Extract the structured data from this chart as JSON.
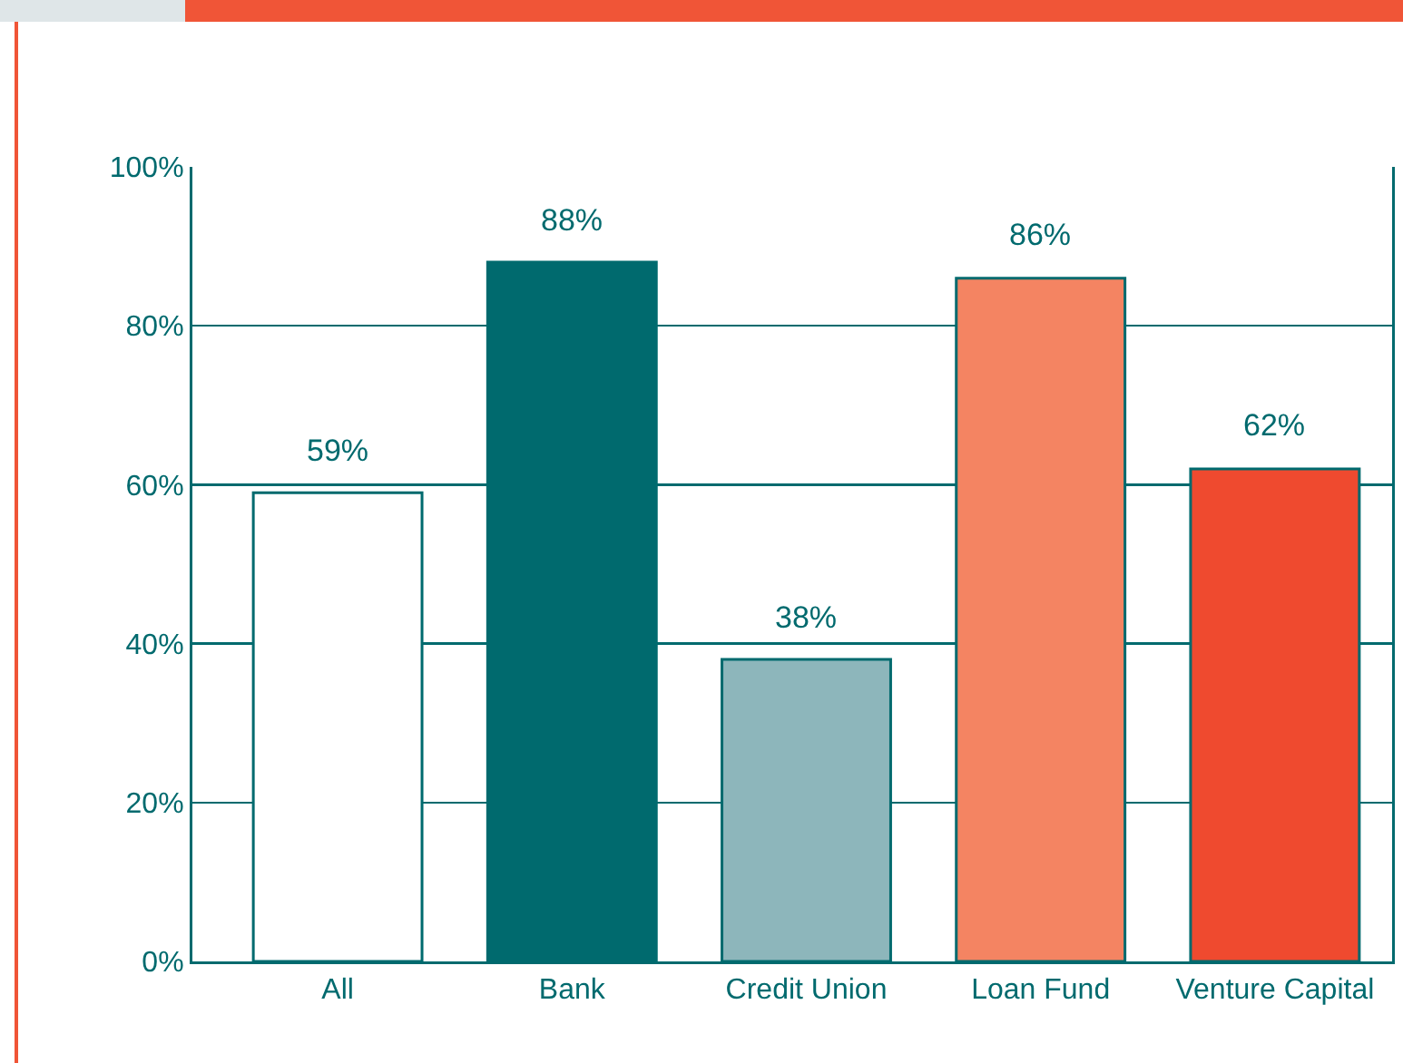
{
  "chart_data": {
    "type": "bar",
    "categories": [
      "All",
      "Bank",
      "Credit Union",
      "Loan Fund",
      "Venture Capital"
    ],
    "values": [
      59,
      88,
      38,
      86,
      62
    ],
    "colors": [
      "#ffffff",
      "#006a6e",
      "#8db6bb",
      "#f48462",
      "#ef4a2f"
    ],
    "value_labels": [
      "59%",
      "88%",
      "38%",
      "86%",
      "62%"
    ],
    "ylim": [
      0,
      100
    ],
    "yticks": [
      {
        "value": 0,
        "label": "0%"
      },
      {
        "value": 20,
        "label": "20%"
      },
      {
        "value": 40,
        "label": "40%"
      },
      {
        "value": 60,
        "label": "60%"
      },
      {
        "value": 80,
        "label": "80%"
      },
      {
        "value": 100,
        "label": "100%"
      }
    ],
    "grid": "y"
  }
}
